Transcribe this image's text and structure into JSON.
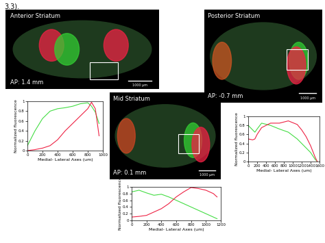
{
  "heading": "3.3).",
  "images": [
    {
      "title": "Anterior Striatum",
      "ap": "AP: 1.4 mm",
      "scale_bar": "1000 µm"
    },
    {
      "title": "Mid Striatum",
      "ap": "AP: 0.1 mm",
      "scale_bar": "1000 µm"
    },
    {
      "title": "Posterior Striatum",
      "ap": "AP: -0.7 mm",
      "scale_bar": "1000 µm"
    }
  ],
  "chart_data": [
    {
      "type": "line",
      "xlabel": "Medial- Lateral Axes (um)",
      "ylabel": "Normalized fluorescence",
      "x": [
        0,
        100,
        200,
        300,
        400,
        500,
        600,
        700,
        800,
        850,
        900,
        950
      ],
      "xlim": [
        0,
        1000
      ],
      "xticks": [
        0,
        200,
        400,
        600,
        800,
        1000
      ],
      "ylim": [
        0,
        1
      ],
      "yticks": [
        0,
        0.2,
        0.4,
        0.6,
        0.8,
        1
      ],
      "series": [
        {
          "color": "#44dd44",
          "values": [
            0.1,
            0.4,
            0.65,
            0.8,
            0.85,
            0.87,
            0.9,
            0.95,
            0.97,
            0.9,
            0.78,
            0.55
          ]
        },
        {
          "color": "#ee2244",
          "values": [
            0.0,
            0.02,
            0.05,
            0.1,
            0.22,
            0.4,
            0.55,
            0.7,
            0.85,
            0.98,
            0.85,
            0.3
          ]
        }
      ]
    },
    {
      "type": "line",
      "xlabel": "Medial- Lateral Axes (um)",
      "ylabel": "Normalized fluorescence",
      "x": [
        0,
        100,
        200,
        300,
        400,
        500,
        600,
        700,
        800,
        900,
        1000,
        1100,
        1150
      ],
      "xlim": [
        0,
        1200
      ],
      "xticks": [
        0,
        200,
        400,
        600,
        800,
        1000,
        1200
      ],
      "ylim": [
        0,
        1
      ],
      "yticks": [
        0,
        0.2,
        0.4,
        0.6,
        0.8,
        1
      ],
      "series": [
        {
          "color": "#44dd44",
          "values": [
            0.85,
            0.9,
            0.82,
            0.75,
            0.78,
            0.7,
            0.6,
            0.5,
            0.4,
            0.3,
            0.2,
            0.1,
            0.05
          ]
        },
        {
          "color": "#ee2244",
          "values": [
            0.1,
            0.12,
            0.15,
            0.25,
            0.35,
            0.5,
            0.7,
            0.85,
            0.98,
            0.95,
            0.9,
            0.8,
            0.7
          ]
        }
      ]
    },
    {
      "type": "line",
      "xlabel": "Medial- Lateral Axes (um)",
      "ylabel": "Normalized fluorescence",
      "x": [
        0,
        100,
        150,
        200,
        300,
        500,
        700,
        900,
        1100,
        1200,
        1300,
        1400,
        1500,
        1550
      ],
      "xlim": [
        0,
        1600
      ],
      "xticks": [
        0,
        200,
        400,
        600,
        800,
        1000,
        1200,
        1400,
        1600
      ],
      "ylim": [
        0,
        1
      ],
      "yticks": [
        0,
        0.2,
        0.4,
        0.6,
        0.8,
        1
      ],
      "series": [
        {
          "color": "#44dd44",
          "values": [
            0.8,
            0.7,
            0.65,
            0.72,
            0.85,
            0.8,
            0.72,
            0.65,
            0.5,
            0.4,
            0.3,
            0.2,
            0.05,
            0.0
          ]
        },
        {
          "color": "#ee2244",
          "values": [
            0.5,
            0.48,
            0.5,
            0.6,
            0.75,
            0.85,
            0.85,
            0.9,
            0.82,
            0.7,
            0.55,
            0.35,
            0.1,
            0.0
          ]
        }
      ]
    }
  ]
}
